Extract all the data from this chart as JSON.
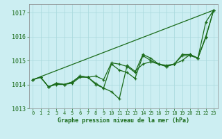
{
  "title": "Graphe pression niveau de la mer (hPa)",
  "background_color": "#cceef2",
  "grid_color": "#a8d8dc",
  "line_color": "#1a6b1a",
  "xlim": [
    -0.5,
    23.5
  ],
  "ylim": [
    1013.0,
    1017.35
  ],
  "yticks": [
    1013,
    1014,
    1015,
    1016,
    1017
  ],
  "xticks": [
    0,
    1,
    2,
    3,
    4,
    5,
    6,
    7,
    8,
    9,
    10,
    11,
    12,
    13,
    14,
    15,
    16,
    17,
    18,
    19,
    20,
    21,
    22,
    23
  ],
  "series": [
    [
      1014.2,
      1014.3,
      1013.9,
      1014.0,
      1014.0,
      1014.05,
      1014.3,
      1014.3,
      1014.0,
      1013.85,
      1013.7,
      1013.4,
      1014.8,
      1014.55,
      1014.85,
      1014.95,
      1014.85,
      1014.75,
      1014.85,
      1015.2,
      1015.2,
      1015.1,
      1016.6,
      1017.1
    ],
    [
      1014.2,
      1014.3,
      1013.9,
      1014.05,
      1014.0,
      1014.1,
      1014.35,
      1014.3,
      1014.05,
      1013.85,
      1014.85,
      1014.6,
      1014.5,
      1014.25,
      1015.2,
      1015.0,
      1014.85,
      1014.75,
      1014.85,
      1015.0,
      1015.25,
      1015.1,
      1016.0,
      1017.1
    ],
    [
      1014.2,
      1014.3,
      1013.9,
      1014.05,
      1014.0,
      1014.1,
      1014.35,
      1014.3,
      1014.35,
      1014.2,
      1014.9,
      1014.85,
      1014.75,
      1014.5,
      1015.25,
      1015.1,
      1014.85,
      1014.8,
      1014.85,
      1015.25,
      1015.25,
      1015.1,
      1015.95,
      1017.1
    ],
    [
      1014.2,
      1017.1
    ]
  ],
  "series_x": [
    [
      0,
      1,
      2,
      3,
      4,
      5,
      6,
      7,
      8,
      9,
      10,
      11,
      12,
      13,
      14,
      15,
      16,
      17,
      18,
      19,
      20,
      21,
      22,
      23
    ],
    [
      0,
      1,
      2,
      3,
      4,
      5,
      6,
      7,
      8,
      9,
      10,
      11,
      12,
      13,
      14,
      15,
      16,
      17,
      18,
      19,
      20,
      21,
      22,
      23
    ],
    [
      0,
      1,
      2,
      3,
      4,
      5,
      6,
      7,
      8,
      9,
      10,
      11,
      12,
      13,
      14,
      15,
      16,
      17,
      18,
      19,
      20,
      21,
      22,
      23
    ],
    [
      0,
      23
    ]
  ],
  "has_marker": [
    true,
    true,
    true,
    false
  ]
}
